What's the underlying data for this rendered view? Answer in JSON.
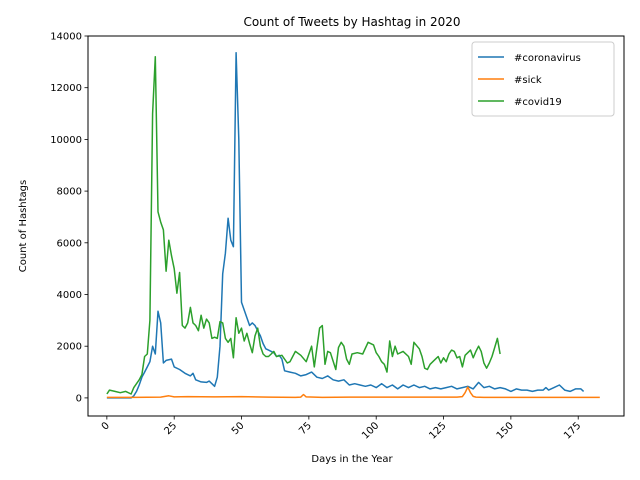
{
  "chart_data": {
    "type": "line",
    "title": "Count of Tweets by Hashtag in 2020",
    "xlabel": "Days in the Year",
    "ylabel": "Count of Hashtags",
    "xlim": [
      -7,
      192
    ],
    "ylim": [
      -700,
      14000
    ],
    "xticks": [
      0,
      25,
      50,
      75,
      100,
      125,
      150,
      175
    ],
    "yticks": [
      0,
      2000,
      4000,
      6000,
      8000,
      10000,
      12000,
      14000
    ],
    "legend_position": "top-right",
    "grid": false,
    "series": [
      {
        "name": "#coronavirus",
        "color": "#1f77b4",
        "points": [
          [
            0,
            0
          ],
          [
            3,
            0
          ],
          [
            6,
            0
          ],
          [
            9,
            0
          ],
          [
            10,
            80
          ],
          [
            11,
            250
          ],
          [
            12,
            500
          ],
          [
            13,
            800
          ],
          [
            14,
            1000
          ],
          [
            15,
            1200
          ],
          [
            16,
            1400
          ],
          [
            17,
            2000
          ],
          [
            18,
            1700
          ],
          [
            19,
            3350
          ],
          [
            20,
            2900
          ],
          [
            21,
            1350
          ],
          [
            22,
            1450
          ],
          [
            24,
            1500
          ],
          [
            25,
            1200
          ],
          [
            27,
            1100
          ],
          [
            29,
            950
          ],
          [
            31,
            850
          ],
          [
            32,
            950
          ],
          [
            33,
            700
          ],
          [
            35,
            620
          ],
          [
            37,
            600
          ],
          [
            38,
            650
          ],
          [
            40,
            450
          ],
          [
            41,
            800
          ],
          [
            42,
            2000
          ],
          [
            43,
            4800
          ],
          [
            44,
            5600
          ],
          [
            45,
            6950
          ],
          [
            46,
            6100
          ],
          [
            47,
            5850
          ],
          [
            48,
            13350
          ],
          [
            49,
            10000
          ],
          [
            50,
            3700
          ],
          [
            51,
            3400
          ],
          [
            52,
            3100
          ],
          [
            53,
            2800
          ],
          [
            54,
            2900
          ],
          [
            55,
            2800
          ],
          [
            56,
            2600
          ],
          [
            57,
            2400
          ],
          [
            58,
            2100
          ],
          [
            59,
            1900
          ],
          [
            60,
            1850
          ],
          [
            61,
            1800
          ],
          [
            62,
            1750
          ],
          [
            63,
            1600
          ],
          [
            64,
            1650
          ],
          [
            65,
            1500
          ],
          [
            66,
            1050
          ],
          [
            68,
            1000
          ],
          [
            70,
            950
          ],
          [
            72,
            850
          ],
          [
            74,
            900
          ],
          [
            76,
            1000
          ],
          [
            78,
            800
          ],
          [
            80,
            750
          ],
          [
            82,
            850
          ],
          [
            84,
            700
          ],
          [
            86,
            650
          ],
          [
            88,
            700
          ],
          [
            90,
            500
          ],
          [
            92,
            550
          ],
          [
            94,
            500
          ],
          [
            96,
            450
          ],
          [
            98,
            500
          ],
          [
            100,
            400
          ],
          [
            102,
            550
          ],
          [
            104,
            400
          ],
          [
            106,
            500
          ],
          [
            108,
            350
          ],
          [
            110,
            500
          ],
          [
            112,
            400
          ],
          [
            114,
            500
          ],
          [
            116,
            400
          ],
          [
            118,
            450
          ],
          [
            120,
            350
          ],
          [
            122,
            400
          ],
          [
            124,
            350
          ],
          [
            126,
            400
          ],
          [
            128,
            450
          ],
          [
            130,
            350
          ],
          [
            132,
            400
          ],
          [
            134,
            450
          ],
          [
            136,
            350
          ],
          [
            138,
            600
          ],
          [
            140,
            400
          ],
          [
            142,
            450
          ],
          [
            144,
            350
          ],
          [
            146,
            400
          ],
          [
            148,
            350
          ],
          [
            150,
            250
          ],
          [
            152,
            350
          ],
          [
            154,
            300
          ],
          [
            156,
            300
          ],
          [
            158,
            250
          ],
          [
            160,
            300
          ],
          [
            162,
            300
          ],
          [
            163,
            400
          ],
          [
            164,
            300
          ],
          [
            166,
            400
          ],
          [
            168,
            500
          ],
          [
            170,
            300
          ],
          [
            172,
            250
          ],
          [
            174,
            350
          ],
          [
            176,
            350
          ],
          [
            177,
            250
          ]
        ]
      },
      {
        "name": "#sick",
        "color": "#ff7f0e",
        "points": [
          [
            0,
            20
          ],
          [
            10,
            20
          ],
          [
            20,
            30
          ],
          [
            23,
            80
          ],
          [
            25,
            40
          ],
          [
            30,
            50
          ],
          [
            40,
            40
          ],
          [
            50,
            50
          ],
          [
            60,
            30
          ],
          [
            70,
            20
          ],
          [
            72,
            30
          ],
          [
            73,
            130
          ],
          [
            74,
            40
          ],
          [
            80,
            20
          ],
          [
            90,
            30
          ],
          [
            100,
            30
          ],
          [
            110,
            30
          ],
          [
            120,
            30
          ],
          [
            130,
            30
          ],
          [
            132,
            50
          ],
          [
            133,
            200
          ],
          [
            134,
            420
          ],
          [
            135,
            200
          ],
          [
            136,
            60
          ],
          [
            137,
            30
          ],
          [
            140,
            20
          ],
          [
            150,
            20
          ],
          [
            160,
            20
          ],
          [
            170,
            20
          ],
          [
            180,
            20
          ],
          [
            183,
            20
          ]
        ]
      },
      {
        "name": "#covid19",
        "color": "#2ca02c",
        "points": [
          [
            0,
            150
          ],
          [
            1,
            300
          ],
          [
            3,
            250
          ],
          [
            5,
            200
          ],
          [
            7,
            250
          ],
          [
            9,
            150
          ],
          [
            10,
            400
          ],
          [
            12,
            700
          ],
          [
            13,
            900
          ],
          [
            14,
            1600
          ],
          [
            15,
            1700
          ],
          [
            16,
            3000
          ],
          [
            17,
            11000
          ],
          [
            18,
            13200
          ],
          [
            19,
            7200
          ],
          [
            20,
            6800
          ],
          [
            21,
            6500
          ],
          [
            22,
            4900
          ],
          [
            23,
            6100
          ],
          [
            24,
            5500
          ],
          [
            25,
            5000
          ],
          [
            26,
            4050
          ],
          [
            27,
            4850
          ],
          [
            28,
            2800
          ],
          [
            29,
            2700
          ],
          [
            30,
            2900
          ],
          [
            31,
            3500
          ],
          [
            32,
            2900
          ],
          [
            33,
            2800
          ],
          [
            34,
            2600
          ],
          [
            35,
            3200
          ],
          [
            36,
            2700
          ],
          [
            37,
            3050
          ],
          [
            38,
            2900
          ],
          [
            39,
            2300
          ],
          [
            40,
            2350
          ],
          [
            41,
            2300
          ],
          [
            42,
            2950
          ],
          [
            43,
            2900
          ],
          [
            44,
            2300
          ],
          [
            45,
            2150
          ],
          [
            46,
            2300
          ],
          [
            47,
            1550
          ],
          [
            48,
            3100
          ],
          [
            49,
            2500
          ],
          [
            50,
            2700
          ],
          [
            51,
            2200
          ],
          [
            52,
            2500
          ],
          [
            53,
            2100
          ],
          [
            54,
            1750
          ],
          [
            55,
            2400
          ],
          [
            56,
            2700
          ],
          [
            57,
            2000
          ],
          [
            58,
            1700
          ],
          [
            59,
            1600
          ],
          [
            60,
            1600
          ],
          [
            61,
            1700
          ],
          [
            62,
            1800
          ],
          [
            63,
            1600
          ],
          [
            65,
            1650
          ],
          [
            67,
            1350
          ],
          [
            68,
            1400
          ],
          [
            70,
            1800
          ],
          [
            72,
            1650
          ],
          [
            74,
            1400
          ],
          [
            76,
            2000
          ],
          [
            77,
            1200
          ],
          [
            79,
            2700
          ],
          [
            80,
            2800
          ],
          [
            81,
            1300
          ],
          [
            82,
            1800
          ],
          [
            83,
            1750
          ],
          [
            85,
            1100
          ],
          [
            86,
            1950
          ],
          [
            87,
            2150
          ],
          [
            88,
            2000
          ],
          [
            89,
            1500
          ],
          [
            90,
            1300
          ],
          [
            91,
            1700
          ],
          [
            93,
            1750
          ],
          [
            95,
            1700
          ],
          [
            97,
            2150
          ],
          [
            99,
            2050
          ],
          [
            100,
            1750
          ],
          [
            101,
            1600
          ],
          [
            102,
            1400
          ],
          [
            103,
            1300
          ],
          [
            104,
            1000
          ],
          [
            105,
            2200
          ],
          [
            106,
            1600
          ],
          [
            107,
            2000
          ],
          [
            108,
            1700
          ],
          [
            110,
            1800
          ],
          [
            112,
            1600
          ],
          [
            113,
            1300
          ],
          [
            114,
            2150
          ],
          [
            116,
            1900
          ],
          [
            117,
            1600
          ],
          [
            118,
            1150
          ],
          [
            119,
            1100
          ],
          [
            120,
            1300
          ],
          [
            122,
            1500
          ],
          [
            123,
            1600
          ],
          [
            124,
            1350
          ],
          [
            125,
            1550
          ],
          [
            126,
            1400
          ],
          [
            127,
            1700
          ],
          [
            128,
            1850
          ],
          [
            129,
            1800
          ],
          [
            130,
            1550
          ],
          [
            131,
            1600
          ],
          [
            132,
            1200
          ],
          [
            133,
            1650
          ],
          [
            134,
            1750
          ],
          [
            135,
            1850
          ],
          [
            136,
            1550
          ],
          [
            137,
            1800
          ],
          [
            138,
            2000
          ],
          [
            139,
            1800
          ],
          [
            140,
            1350
          ],
          [
            141,
            1150
          ],
          [
            142,
            1350
          ],
          [
            143,
            1600
          ],
          [
            144,
            1950
          ],
          [
            145,
            2300
          ],
          [
            146,
            1700
          ]
        ]
      }
    ]
  }
}
